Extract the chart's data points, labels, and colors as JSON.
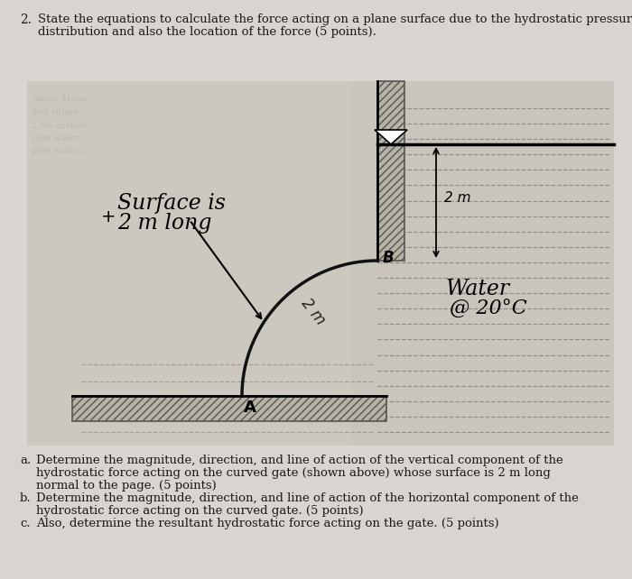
{
  "bg_color": "#d8d4cf",
  "title_number": "2.",
  "title_line1": "State the equations to calculate the force acting on a plane surface due to the hydrostatic pressure",
  "title_line2": "distribution and also the location of the force (5 points).",
  "sub_a_label": "a.",
  "sub_a_line1": "Determine the magnitude, direction, and line of action of the vertical component of the",
  "sub_a_line2": "hydrostatic force acting on the curved gate (shown above) whose surface is 2 m long",
  "sub_a_line3": "normal to the page. (5 points)",
  "sub_b_label": "b.",
  "sub_b_line1": "Determine the magnitude, direction, and line of action of the horizontal component of the",
  "sub_b_line2": "hydrostatic force acting on the curved gate. (5 points)",
  "sub_c_label": "c.",
  "sub_c_line1": "Also, determine the resultant hydrostatic force acting on the gate. (5 points)",
  "diagram_bg_left": "#c8c2b8",
  "diagram_bg_right": "#ccc8c0",
  "wall_face_color": "#b0aa9e",
  "hatch_color": "#666655",
  "text_color": "#1a1a1a",
  "water_line_color": "#8a857a",
  "gate_color": "#111111",
  "surface_label": "Surface is",
  "surface_label2": "2 m long",
  "water_label1": "Water",
  "water_label2": "@ 20°C",
  "dim_label": "2 m",
  "gate_dim_label": "2 m",
  "point_A": "A",
  "point_B": "B"
}
